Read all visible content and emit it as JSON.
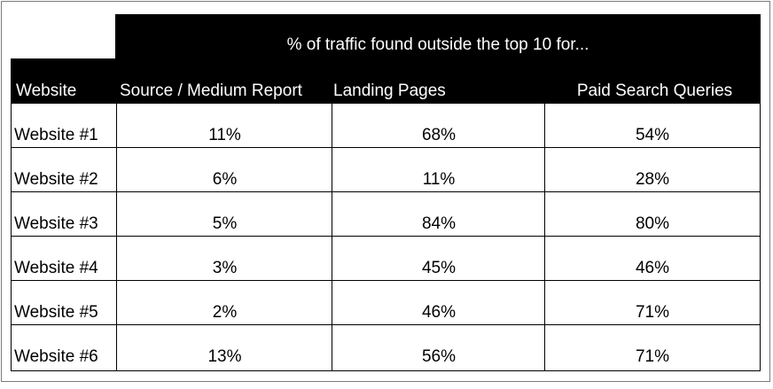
{
  "chart_data": {
    "type": "table",
    "title": "% of traffic found outside the top 10 for...",
    "columns": [
      "Website",
      "Source / Medium Report",
      "Landing Pages",
      "Paid Search Queries"
    ],
    "rows": [
      [
        "Website #1",
        "11%",
        "68%",
        "54%"
      ],
      [
        "Website #2",
        "6%",
        "11%",
        "28%"
      ],
      [
        "Website #3",
        "5%",
        "84%",
        "80%"
      ],
      [
        "Website #4",
        "3%",
        "45%",
        "46%"
      ],
      [
        "Website #5",
        "2%",
        "46%",
        "71%"
      ],
      [
        "Website #6",
        "13%",
        "56%",
        "71%"
      ]
    ],
    "colors": {
      "header_background": "#000000",
      "header_text": "#ffffff",
      "body_text": "#000000",
      "grid": "#000000"
    }
  }
}
